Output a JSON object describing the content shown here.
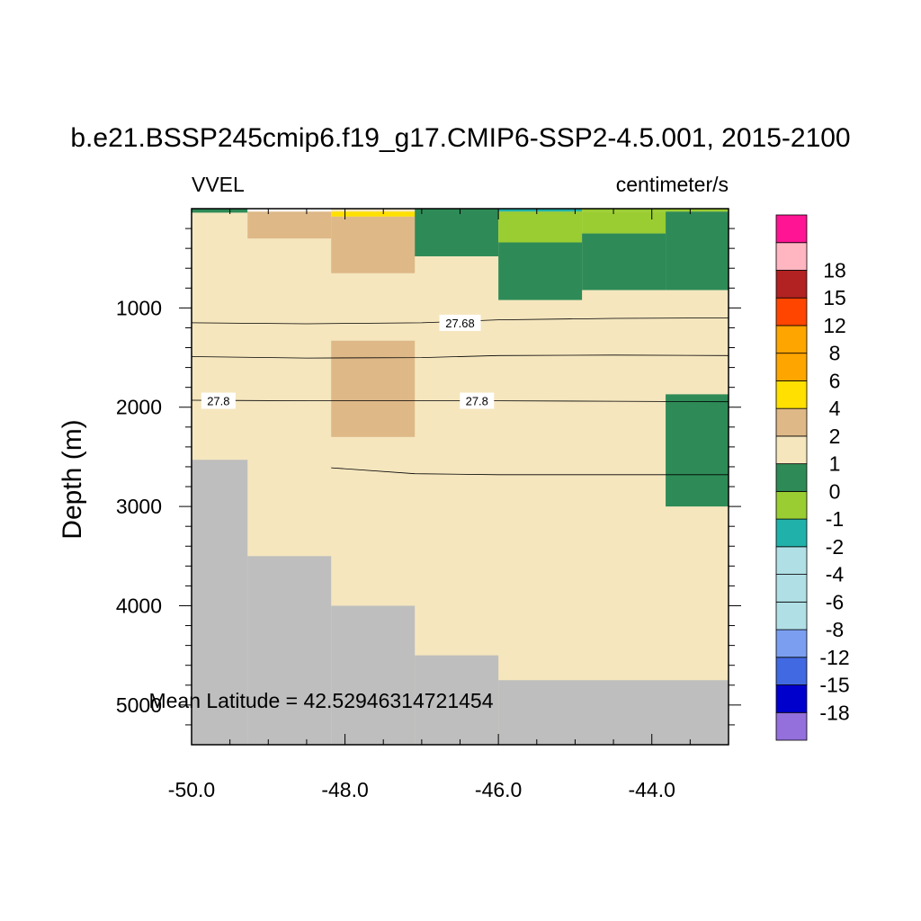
{
  "chart_data": {
    "type": "heatmap",
    "title": "b.e21.BSSP245cmip6.f19_g17.CMIP6-SSP2-4.5.001, 2015-2100",
    "left_string": "VVEL",
    "right_string": "centimeter/s",
    "ylabel": "Depth (m)",
    "xlabel": "",
    "annotation": "Mean Latitude = 42.52946314721454",
    "xlim": [
      -50.0,
      -43.0
    ],
    "ylim": [
      0,
      5400
    ],
    "y_reversed": true,
    "x_tick_labels": [
      "-50.0",
      "-48.0",
      "-46.0",
      "-44.0"
    ],
    "x_ticks": [
      -50.0,
      -48.0,
      -46.0,
      -44.0
    ],
    "y_tick_labels": [
      "1000",
      "2000",
      "3000",
      "4000",
      "5000"
    ],
    "y_ticks": [
      1000,
      2000,
      3000,
      4000,
      5000
    ],
    "background_color": "#f5e6be",
    "land_color": "#bebebe",
    "cells": [
      {
        "x0": -50.0,
        "x1": -49.27,
        "y0": 0,
        "y1": 40,
        "color": "#2e8b57"
      },
      {
        "x0": -49.27,
        "x1": -48.18,
        "y0": 0,
        "y1": 30,
        "color": "#ffffff"
      },
      {
        "x0": -49.27,
        "x1": -48.18,
        "y0": 30,
        "y1": 300,
        "color": "#deb887"
      },
      {
        "x0": -48.18,
        "x1": -47.09,
        "y0": 0,
        "y1": 30,
        "color": "#f5e6be"
      },
      {
        "x0": -48.18,
        "x1": -47.09,
        "y0": 30,
        "y1": 80,
        "color": "#ffe000"
      },
      {
        "x0": -48.18,
        "x1": -47.09,
        "y0": 80,
        "y1": 650,
        "color": "#deb887"
      },
      {
        "x0": -47.09,
        "x1": -46.0,
        "y0": 0,
        "y1": 480,
        "color": "#2e8b57"
      },
      {
        "x0": -46.0,
        "x1": -44.91,
        "y0": 0,
        "y1": 30,
        "color": "#20b2aa"
      },
      {
        "x0": -46.0,
        "x1": -44.91,
        "y0": 30,
        "y1": 340,
        "color": "#9acd32"
      },
      {
        "x0": -46.0,
        "x1": -44.91,
        "y0": 340,
        "y1": 920,
        "color": "#2e8b57"
      },
      {
        "x0": -44.91,
        "x1": -43.82,
        "y0": 0,
        "y1": 30,
        "color": "#9acd32"
      },
      {
        "x0": -44.91,
        "x1": -43.82,
        "y0": 30,
        "y1": 250,
        "color": "#9acd32"
      },
      {
        "x0": -44.91,
        "x1": -43.82,
        "y0": 250,
        "y1": 820,
        "color": "#2e8b57"
      },
      {
        "x0": -43.82,
        "x1": -43.0,
        "y0": 0,
        "y1": 30,
        "color": "#9acd32"
      },
      {
        "x0": -43.82,
        "x1": -43.0,
        "y0": 30,
        "y1": 820,
        "color": "#2e8b57"
      },
      {
        "x0": -48.18,
        "x1": -47.09,
        "y0": 1330,
        "y1": 2300,
        "color": "#deb887"
      },
      {
        "x0": -43.82,
        "x1": -43.0,
        "y0": 1870,
        "y1": 3000,
        "color": "#2e8b57"
      }
    ],
    "land_profile": [
      {
        "x0": -50.0,
        "x1": -49.27,
        "depth": 2530
      },
      {
        "x0": -49.27,
        "x1": -48.18,
        "depth": 3500
      },
      {
        "x0": -48.18,
        "x1": -47.09,
        "depth": 4000
      },
      {
        "x0": -47.09,
        "x1": -46.0,
        "depth": 4500
      },
      {
        "x0": -46.0,
        "x1": -43.0,
        "depth": 4750
      }
    ],
    "contours": [
      {
        "label": "27.68",
        "points": [
          [
            -50.0,
            1150
          ],
          [
            -48.5,
            1160
          ],
          [
            -47.0,
            1150
          ],
          [
            -46.0,
            1120
          ],
          [
            -44.5,
            1105
          ],
          [
            -43.0,
            1100
          ]
        ],
        "labels_at": [
          [
            -46.5,
            1150
          ]
        ]
      },
      {
        "label": "",
        "points": [
          [
            -50.0,
            1490
          ],
          [
            -48.5,
            1505
          ],
          [
            -47.0,
            1500
          ],
          [
            -46.0,
            1480
          ],
          [
            -44.5,
            1475
          ],
          [
            -43.0,
            1480
          ]
        ],
        "labels_at": []
      },
      {
        "label": "27.8",
        "points": [
          [
            -50.0,
            1930
          ],
          [
            -48.5,
            1935
          ],
          [
            -47.0,
            1935
          ],
          [
            -46.0,
            1935
          ],
          [
            -44.5,
            1940
          ],
          [
            -43.0,
            1945
          ]
        ],
        "labels_at": [
          [
            -49.65,
            1935
          ],
          [
            -46.28,
            1935
          ]
        ]
      },
      {
        "label": "",
        "points": [
          [
            -48.18,
            2610
          ],
          [
            -47.09,
            2670
          ],
          [
            -46.0,
            2680
          ],
          [
            -44.5,
            2680
          ],
          [
            -43.0,
            2680
          ]
        ],
        "labels_at": []
      }
    ],
    "colorbar": {
      "colors": [
        "#9370db",
        "#0000cd",
        "#4169e1",
        "#7b9ef0",
        "#b0e0e6",
        "#b0e0e6",
        "#b0e0e6",
        "#20b2aa",
        "#9acd32",
        "#2e8b57",
        "#f5e6be",
        "#deb887",
        "#ffe000",
        "#ffa500",
        "#ffa500",
        "#ff4500",
        "#b22222",
        "#ffb6c1",
        "#ff1493"
      ],
      "labels": [
        "-18",
        "-15",
        "-12",
        "-8",
        "-6",
        "-4",
        "-2",
        "-1",
        "0",
        "1",
        "2",
        "4",
        "6",
        "8",
        "12",
        "15",
        "18"
      ]
    }
  }
}
